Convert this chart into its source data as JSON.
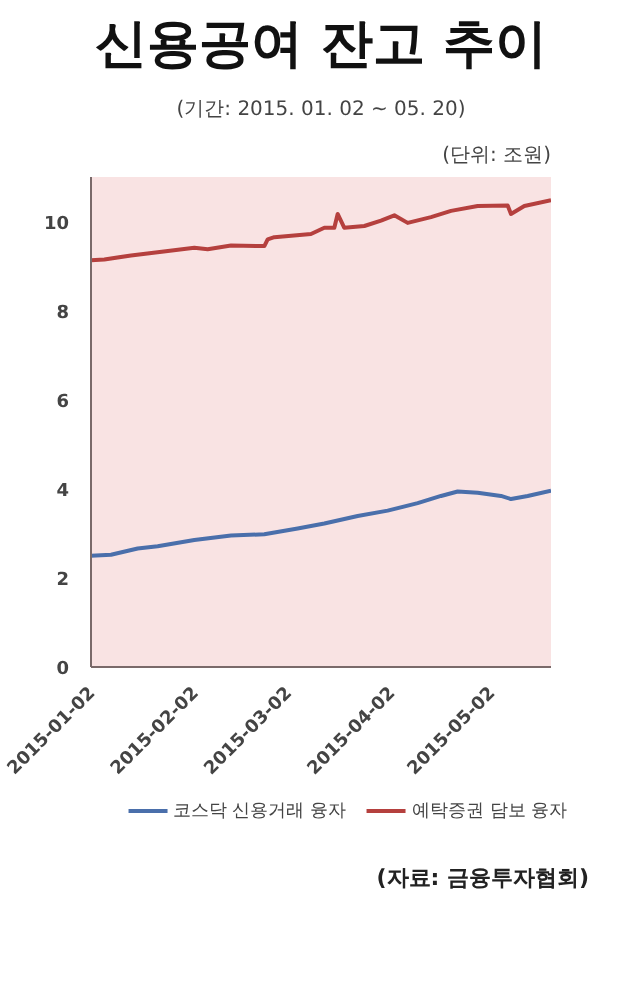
{
  "chart_data": {
    "type": "line",
    "title": "신용공여 잔고 추이",
    "subtitle": "(기간: 2015. 01. 02 ~ 05. 20)",
    "ylabel": "(단위: 조원)",
    "annotations": [
      "(자료: 금융투자협회)"
    ],
    "xlim": [
      "2015-01-02",
      "2015-05-20"
    ],
    "xticks": [
      "2015-01-02",
      "2015-02-02",
      "2015-03-02",
      "2015-04-02",
      "2015-05-02"
    ],
    "ylim": [
      0,
      11
    ],
    "yticks": [
      0,
      2,
      4,
      6,
      8,
      10
    ],
    "grid": false,
    "legend": "bottom",
    "line_style": "solid",
    "series": [
      {
        "name": "코스닥 신용거래 융자",
        "color": "#4a6fab",
        "x": [
          "2015-01-02",
          "2015-01-08",
          "2015-01-16",
          "2015-01-22",
          "2015-02-02",
          "2015-02-13",
          "2015-02-23",
          "2015-03-05",
          "2015-03-13",
          "2015-03-23",
          "2015-04-01",
          "2015-04-10",
          "2015-04-17",
          "2015-04-22",
          "2015-04-28",
          "2015-05-05",
          "2015-05-08",
          "2015-05-13",
          "2015-05-20"
        ],
        "values": [
          2.5,
          2.52,
          2.66,
          2.71,
          2.85,
          2.95,
          2.98,
          3.11,
          3.22,
          3.39,
          3.51,
          3.68,
          3.84,
          3.94,
          3.91,
          3.84,
          3.77,
          3.84,
          3.96
        ]
      },
      {
        "name": "예탁증권 담보 융자",
        "color": "#b5403e",
        "x": [
          "2015-01-02",
          "2015-01-06",
          "2015-01-14",
          "2015-01-22",
          "2015-02-02",
          "2015-02-06",
          "2015-02-13",
          "2015-02-23",
          "2015-02-24",
          "2015-02-26",
          "2015-03-09",
          "2015-03-13",
          "2015-03-16",
          "2015-03-17",
          "2015-03-19",
          "2015-03-25",
          "2015-03-30",
          "2015-04-03",
          "2015-04-07",
          "2015-04-14",
          "2015-04-20",
          "2015-04-28",
          "2015-05-07",
          "2015-05-08",
          "2015-05-12",
          "2015-05-20"
        ],
        "values": [
          9.13,
          9.15,
          9.24,
          9.31,
          9.41,
          9.38,
          9.46,
          9.45,
          9.6,
          9.65,
          9.72,
          9.86,
          9.86,
          10.17,
          9.86,
          9.9,
          10.02,
          10.14,
          9.97,
          10.1,
          10.24,
          10.35,
          10.36,
          10.17,
          10.35,
          10.48
        ]
      }
    ]
  }
}
